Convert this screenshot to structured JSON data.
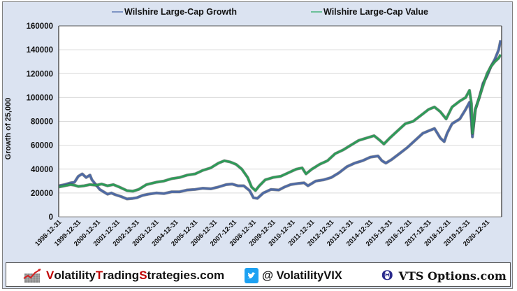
{
  "chart_data": {
    "type": "line",
    "title": "",
    "xlabel": "",
    "ylabel": "Growth of 25,000",
    "ylim": [
      0,
      160000
    ],
    "yticks": [
      "0",
      "20000",
      "40000",
      "60000",
      "80000",
      "100000",
      "120000",
      "140000",
      "160000"
    ],
    "xlim": [
      1998.99,
      2021.75
    ],
    "xtick_labels": [
      "1998-12-31",
      "1999-12-31",
      "2000-12-31",
      "2001-12-31",
      "2002-12-31",
      "2003-12-31",
      "2004-12-31",
      "2005-12-31",
      "2006-12-31",
      "2007-12-31",
      "2008-12-31",
      "2009-12-31",
      "2010-12-31",
      "2011-12-31",
      "2012-12-31",
      "2013-12-31",
      "2014-12-31",
      "2015-12-31",
      "2016-12-31",
      "2017-12-31",
      "2018-12-31",
      "2019-12-31",
      "2020-12-31"
    ],
    "grid": true,
    "legend_position": "top",
    "series": [
      {
        "name": "Wilshire Large-Cap Growth",
        "color": "#4e6aa5",
        "x": [
          1999.0,
          1999.3,
          1999.6,
          1999.8,
          2000.0,
          2000.2,
          2000.4,
          2000.6,
          2000.7,
          2000.9,
          2001.1,
          2001.3,
          2001.5,
          2001.7,
          2001.9,
          2002.2,
          2002.5,
          2002.8,
          2003.0,
          2003.3,
          2003.6,
          2004.0,
          2004.4,
          2004.8,
          2005.2,
          2005.6,
          2006.0,
          2006.4,
          2006.8,
          2007.2,
          2007.6,
          2007.9,
          2008.2,
          2008.5,
          2008.8,
          2009.0,
          2009.2,
          2009.5,
          2009.9,
          2010.3,
          2010.6,
          2010.9,
          2011.3,
          2011.6,
          2011.8,
          2012.2,
          2012.6,
          2013.0,
          2013.4,
          2013.8,
          2014.2,
          2014.6,
          2015.0,
          2015.4,
          2015.6,
          2015.8,
          2016.1,
          2016.5,
          2016.9,
          2017.3,
          2017.7,
          2018.0,
          2018.3,
          2018.6,
          2018.8,
          2018.95,
          2019.2,
          2019.6,
          2019.9,
          2020.1,
          2020.2,
          2020.25,
          2020.4,
          2020.6,
          2020.8,
          2021.0,
          2021.2,
          2021.4,
          2021.6,
          2021.7
        ],
        "values": [
          26000,
          27000,
          28500,
          29000,
          34000,
          36000,
          33000,
          35000,
          31000,
          27000,
          23000,
          21000,
          19000,
          20000,
          18500,
          17000,
          15000,
          15500,
          16000,
          18000,
          19000,
          20000,
          19500,
          21000,
          21000,
          22500,
          23000,
          24000,
          23500,
          25000,
          27000,
          27500,
          26000,
          26000,
          22000,
          16000,
          15500,
          20000,
          23000,
          22500,
          25000,
          27000,
          28000,
          28500,
          26000,
          30000,
          31000,
          33000,
          37000,
          42000,
          45000,
          47000,
          50000,
          51000,
          47000,
          45000,
          48000,
          53000,
          58000,
          64000,
          70000,
          72000,
          74000,
          66000,
          63000,
          70000,
          78000,
          82000,
          90000,
          96000,
          80000,
          67000,
          90000,
          100000,
          112000,
          118000,
          126000,
          132000,
          140000,
          148000
        ]
      },
      {
        "name": "Wilshire Large-Cap Value",
        "color": "#2e9b58",
        "x": [
          1999.0,
          1999.3,
          1999.6,
          1999.8,
          2000.0,
          2000.3,
          2000.6,
          2000.9,
          2001.2,
          2001.5,
          2001.8,
          2002.1,
          2002.5,
          2002.8,
          2003.1,
          2003.5,
          2004.0,
          2004.4,
          2004.8,
          2005.2,
          2005.6,
          2006.0,
          2006.4,
          2006.8,
          2007.2,
          2007.5,
          2007.8,
          2008.1,
          2008.4,
          2008.7,
          2008.9,
          2009.1,
          2009.3,
          2009.6,
          2010.0,
          2010.4,
          2010.8,
          2011.2,
          2011.5,
          2011.7,
          2012.0,
          2012.4,
          2012.8,
          2013.2,
          2013.6,
          2014.0,
          2014.4,
          2014.8,
          2015.2,
          2015.5,
          2015.7,
          2016.0,
          2016.4,
          2016.8,
          2017.2,
          2017.6,
          2018.0,
          2018.3,
          2018.6,
          2018.9,
          2019.2,
          2019.6,
          2019.9,
          2020.1,
          2020.2,
          2020.25,
          2020.4,
          2020.6,
          2020.8,
          2021.0,
          2021.2,
          2021.4,
          2021.6,
          2021.7
        ],
        "values": [
          25000,
          26000,
          27000,
          26500,
          25500,
          26000,
          27000,
          26500,
          27500,
          26000,
          27000,
          25000,
          22000,
          21500,
          23000,
          27000,
          29000,
          30000,
          32000,
          33000,
          35000,
          36000,
          39000,
          41000,
          45000,
          47000,
          46000,
          44000,
          40000,
          33000,
          25000,
          22000,
          26000,
          31000,
          33000,
          34000,
          37000,
          40000,
          41000,
          36000,
          40000,
          44000,
          47000,
          53000,
          56000,
          60000,
          64000,
          66000,
          68000,
          64000,
          61000,
          66000,
          72000,
          78000,
          80000,
          85000,
          90000,
          92000,
          88000,
          82000,
          92000,
          97000,
          100000,
          106000,
          95000,
          70000,
          90000,
          100000,
          110000,
          120000,
          126000,
          130000,
          133000,
          136000
        ]
      }
    ]
  },
  "footer": {
    "site_prefix_v": "V",
    "site_part1": "olatility",
    "site_prefix_t": "T",
    "site_part2": "rading",
    "site_prefix_s": "S",
    "site_part3": "trategies.com",
    "twitter_handle": "@ VolatilityVIX",
    "vts_text": "VTS Options.com",
    "vts_symbol": "Θ",
    "twitter_color": "#1da1f2",
    "brand_red": "#c00000"
  }
}
